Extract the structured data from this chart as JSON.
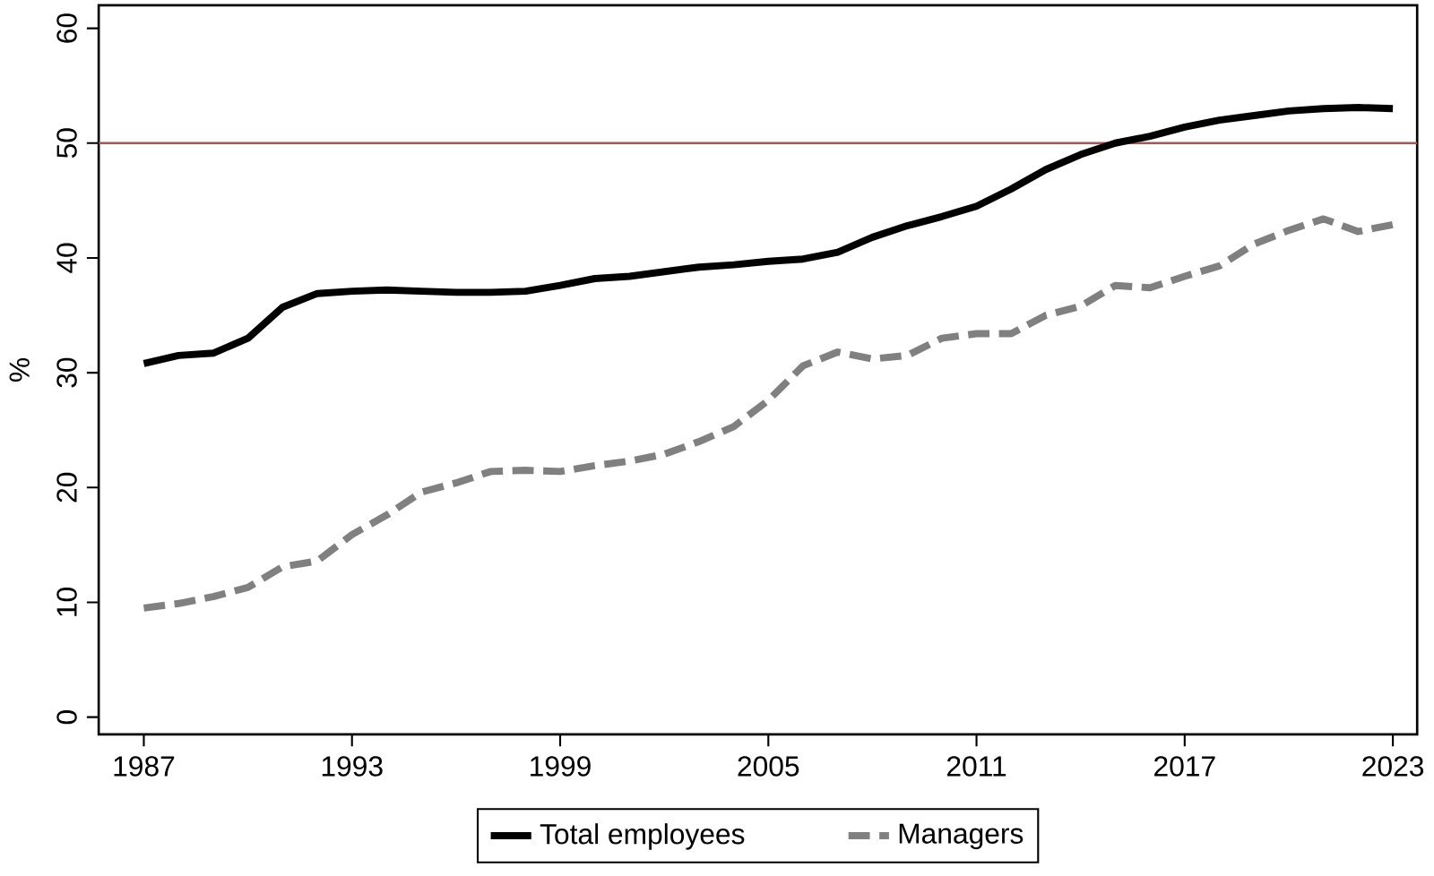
{
  "chart_data": {
    "type": "line",
    "ylabel": "%",
    "x": [
      1987,
      1988,
      1989,
      1990,
      1991,
      1992,
      1993,
      1994,
      1995,
      1996,
      1997,
      1998,
      1999,
      2000,
      2001,
      2002,
      2003,
      2004,
      2005,
      2006,
      2007,
      2008,
      2009,
      2010,
      2011,
      2012,
      2013,
      2014,
      2015,
      2016,
      2017,
      2018,
      2019,
      2020,
      2021,
      2022,
      2023
    ],
    "series": [
      {
        "name": "Total employees",
        "color": "#000000",
        "line_style": "solid",
        "values": [
          30.8,
          31.5,
          31.7,
          33.0,
          35.7,
          36.9,
          37.1,
          37.2,
          37.1,
          37.0,
          37.0,
          37.1,
          37.6,
          38.2,
          38.4,
          38.8,
          39.2,
          39.4,
          39.7,
          39.9,
          40.5,
          41.8,
          42.8,
          43.6,
          44.5,
          46.0,
          47.7,
          49.0,
          50.0,
          50.6,
          51.4,
          52.0,
          52.4,
          52.8,
          53.0,
          53.1,
          53.0
        ]
      },
      {
        "name": "Managers",
        "color": "#808080",
        "line_style": "dashed",
        "values": [
          9.5,
          9.9,
          10.5,
          11.3,
          13.1,
          13.6,
          15.9,
          17.6,
          19.6,
          20.4,
          21.4,
          21.5,
          21.4,
          21.9,
          22.3,
          22.9,
          24.0,
          25.3,
          27.6,
          30.6,
          31.8,
          31.2,
          31.5,
          33.0,
          33.4,
          33.4,
          35.0,
          35.8,
          37.6,
          37.4,
          38.4,
          39.3,
          41.2,
          42.4,
          43.4,
          42.3,
          42.9
        ]
      }
    ],
    "xlim": [
      1985.7,
      2023.7
    ],
    "ylim": [
      -1.5,
      62
    ],
    "xticks": [
      1987,
      1993,
      1999,
      2005,
      2011,
      2017,
      2023
    ],
    "yticks": [
      0,
      10,
      20,
      30,
      40,
      50,
      60
    ],
    "ref_lines": [
      {
        "axis": "y",
        "value": 50,
        "color": "#a05a5a"
      }
    ],
    "legend": "bottom",
    "grid": false
  }
}
